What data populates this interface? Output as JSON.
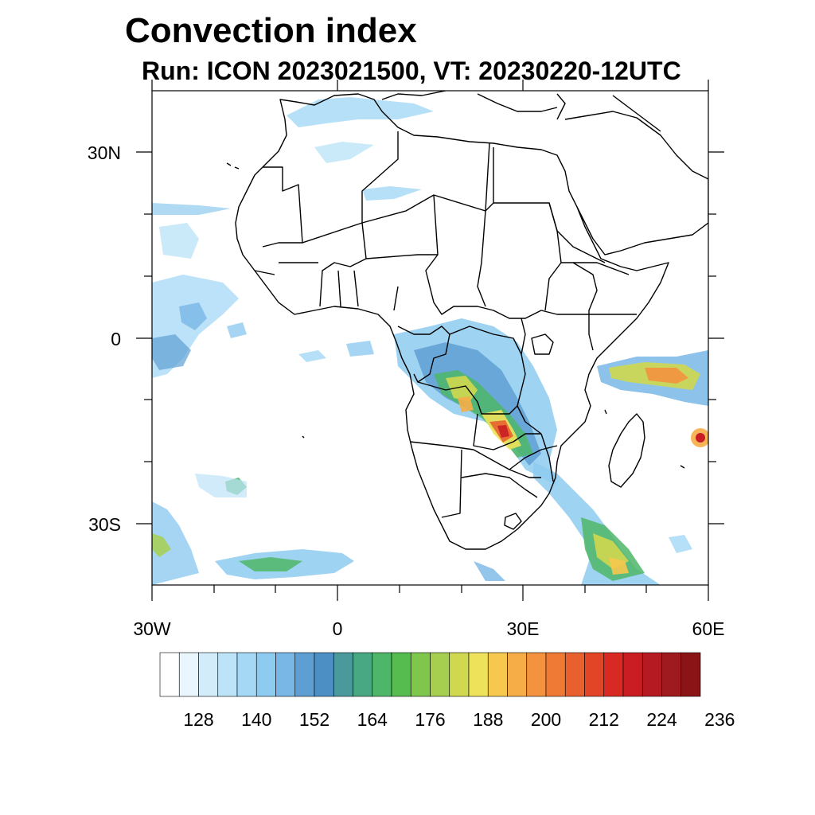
{
  "title": "Convection index",
  "subtitle": "Run: ICON 2023021500,  VT: 20230220-12UTC",
  "axes": {
    "lat_labels": [
      "30N",
      "0",
      "30S"
    ],
    "lon_labels": [
      "30W",
      "0",
      "30E",
      "60E"
    ]
  },
  "colorbar": {
    "tick_labels": [
      "128",
      "140",
      "152",
      "164",
      "176",
      "188",
      "200",
      "212",
      "224",
      "236"
    ],
    "colors": [
      "#ffffff",
      "#eaf6fd",
      "#d2ecfa",
      "#bde3f8",
      "#a4d8f5",
      "#8ecbf0",
      "#79b8e6",
      "#5e9fd3",
      "#4b8fc4",
      "#4a9a9c",
      "#49a884",
      "#4eb668",
      "#56bc4f",
      "#7fc64d",
      "#a7cf4f",
      "#cfd84f",
      "#eee25a",
      "#f7c84e",
      "#f6ad47",
      "#f39340",
      "#ee7a36",
      "#e8602d",
      "#e24426",
      "#d82a22",
      "#c91d23",
      "#b51a23",
      "#9e1a1f",
      "#8a1416"
    ]
  }
}
